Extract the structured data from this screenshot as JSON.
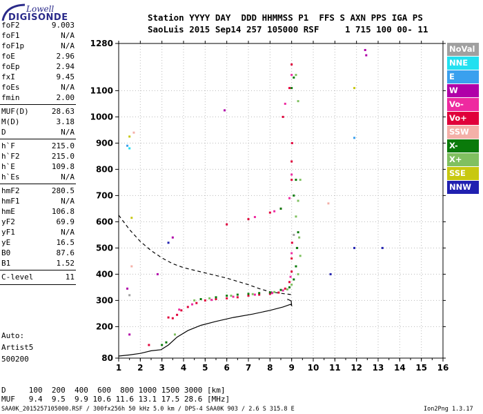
{
  "logo": {
    "top": "Lowell",
    "bottom": "DIGISONDE"
  },
  "header": {
    "line1": "Station YYYY DAY  DDD HHMMSS P1  FFS S AXN PPS IGA PS",
    "line2": "SaoLuis 2015 Sep14 257 105000 RSF     1 715 100 00- 11"
  },
  "params": [
    {
      "k": "foF2",
      "v": "9.003"
    },
    {
      "k": "foF1",
      "v": "N/A"
    },
    {
      "k": "foF1p",
      "v": "N/A"
    },
    {
      "k": "foE",
      "v": "2.96"
    },
    {
      "k": "foEp",
      "v": "2.94"
    },
    {
      "k": "fxI",
      "v": "9.45"
    },
    {
      "k": "foEs",
      "v": "N/A"
    },
    {
      "k": "fmin",
      "v": "2.00"
    },
    {
      "k": "MUF(D)",
      "v": "28.63"
    },
    {
      "k": "M(D)",
      "v": "3.18"
    },
    {
      "k": "D",
      "v": "N/A"
    },
    {
      "k": "h`F",
      "v": "215.0"
    },
    {
      "k": "h`F2",
      "v": "215.0"
    },
    {
      "k": "h`E",
      "v": "109.8"
    },
    {
      "k": "h`Es",
      "v": "N/A"
    },
    {
      "k": "hmF2",
      "v": "280.5"
    },
    {
      "k": "hmF1",
      "v": "N/A"
    },
    {
      "k": "hmE",
      "v": "106.8"
    },
    {
      "k": "yF2",
      "v": "69.9"
    },
    {
      "k": "yF1",
      "v": "N/A"
    },
    {
      "k": "yE",
      "v": "16.5"
    },
    {
      "k": "B0",
      "v": "87.6"
    },
    {
      "k": "B1",
      "v": "1.52"
    },
    {
      "k": "C-level",
      "v": "11"
    }
  ],
  "auto": {
    "line1": "Auto:",
    "line2": "Artist5",
    "line3": "500200"
  },
  "legend": [
    {
      "label": "NoVal",
      "color": "#a0a0a0"
    },
    {
      "label": "NNE",
      "color": "#22e0f0"
    },
    {
      "label": "E",
      "color": "#3aa0ee"
    },
    {
      "label": "W",
      "color": "#b000a8"
    },
    {
      "label": "Vo-",
      "color": "#ee2aa0"
    },
    {
      "label": "Vo+",
      "color": "#e0003a"
    },
    {
      "label": "SSW",
      "color": "#f4b0a8"
    },
    {
      "label": "X-",
      "color": "#0a7a0a"
    },
    {
      "label": "X+",
      "color": "#80c060"
    },
    {
      "label": "SSE",
      "color": "#c8c810"
    },
    {
      "label": "NNW",
      "color": "#2020b0"
    }
  ],
  "footer": {
    "d_row": "D     100  200  400  600  800 1000 1500 3000 [km]",
    "muf_row": "MUF   9.4  9.5  9.9 10.6 11.6 13.1 17.5 28.6 [MHz]",
    "file_info": "SAA0K_2015257105000.RSF / 300fx256h 50 kHz 5.0 km / DPS-4 SAA0K 903 / 2.6 S 315.8 E",
    "version": "Ion2Png 1.3.17"
  },
  "chart_data": {
    "type": "scatter",
    "xlim": [
      1,
      16
    ],
    "ylim": [
      80,
      1280
    ],
    "x_ticks": [
      "1",
      "2",
      "3",
      "4",
      "5",
      "6",
      "7",
      "8",
      "9",
      "10",
      "11",
      "12",
      "13",
      "14",
      "15",
      "16"
    ],
    "y_ticks": [
      "80",
      "200",
      "300",
      "400",
      "500",
      "600",
      "700",
      "800",
      "900",
      "1000",
      "1100",
      "1280"
    ],
    "grid": true,
    "series": [
      {
        "name": "Vo+",
        "color": "#e0003a",
        "points": [
          [
            3.3,
            235
          ],
          [
            3.5,
            232
          ],
          [
            3.7,
            245
          ],
          [
            3.9,
            262
          ],
          [
            4.2,
            275
          ],
          [
            4.6,
            290
          ],
          [
            5.0,
            300
          ],
          [
            5.5,
            305
          ],
          [
            6.0,
            308
          ],
          [
            6.5,
            312
          ],
          [
            7.0,
            318
          ],
          [
            7.5,
            322
          ],
          [
            8.0,
            325
          ],
          [
            8.4,
            330
          ],
          [
            8.7,
            345
          ],
          [
            8.9,
            370
          ],
          [
            9.0,
            410
          ],
          [
            9.0,
            460
          ],
          [
            9.02,
            520
          ],
          [
            8.5,
            650
          ],
          [
            8.0,
            635
          ],
          [
            7.0,
            610
          ],
          [
            6.0,
            590
          ],
          [
            9.0,
            760
          ],
          [
            9.0,
            830
          ],
          [
            9.02,
            900
          ],
          [
            8.6,
            1000
          ],
          [
            8.9,
            1110
          ],
          [
            9.0,
            1200
          ],
          [
            2.4,
            130
          ]
        ]
      },
      {
        "name": "X-",
        "color": "#0a7a0a",
        "points": [
          [
            4.8,
            305
          ],
          [
            5.5,
            312
          ],
          [
            6.0,
            318
          ],
          [
            6.5,
            322
          ],
          [
            7.0,
            325
          ],
          [
            7.5,
            328
          ],
          [
            8.0,
            330
          ],
          [
            8.5,
            340
          ],
          [
            8.9,
            350
          ],
          [
            9.1,
            380
          ],
          [
            9.2,
            430
          ],
          [
            9.25,
            500
          ],
          [
            9.3,
            560
          ],
          [
            8.5,
            650
          ],
          [
            9.1,
            700
          ],
          [
            9.2,
            760
          ],
          [
            9.0,
            1110
          ],
          [
            9.1,
            1150
          ],
          [
            3.0,
            130
          ],
          [
            3.2,
            140
          ]
        ]
      },
      {
        "name": "X+",
        "color": "#80c060",
        "points": [
          [
            4.5,
            300
          ],
          [
            5.2,
            308
          ],
          [
            6.2,
            318
          ],
          [
            7.2,
            324
          ],
          [
            8.2,
            332
          ],
          [
            8.8,
            342
          ],
          [
            9.0,
            360
          ],
          [
            9.3,
            400
          ],
          [
            9.4,
            470
          ],
          [
            9.35,
            540
          ],
          [
            9.2,
            620
          ],
          [
            9.3,
            680
          ],
          [
            9.4,
            760
          ],
          [
            9.3,
            1060
          ],
          [
            9.2,
            1160
          ],
          [
            3.6,
            170
          ]
        ]
      },
      {
        "name": "Vo-",
        "color": "#ee2aa0",
        "points": [
          [
            3.8,
            265
          ],
          [
            4.4,
            285
          ],
          [
            5.3,
            302
          ],
          [
            6.3,
            314
          ],
          [
            7.3,
            322
          ],
          [
            8.1,
            328
          ],
          [
            8.6,
            338
          ],
          [
            8.95,
            390
          ],
          [
            9.0,
            480
          ],
          [
            7.3,
            618
          ],
          [
            8.2,
            640
          ],
          [
            8.9,
            690
          ],
          [
            9.0,
            780
          ],
          [
            8.7,
            1050
          ],
          [
            9.0,
            1160
          ]
        ]
      },
      {
        "name": "W",
        "color": "#b000a8",
        "points": [
          [
            12.4,
            1255
          ],
          [
            12.45,
            1235
          ],
          [
            5.9,
            1025
          ],
          [
            1.4,
            345
          ],
          [
            3.5,
            540
          ],
          [
            2.8,
            400
          ],
          [
            1.5,
            170
          ]
        ]
      },
      {
        "name": "NNE",
        "color": "#22e0f0",
        "points": [
          [
            1.5,
            880
          ]
        ]
      },
      {
        "name": "E",
        "color": "#3aa0ee",
        "points": [
          [
            1.4,
            890
          ],
          [
            11.9,
            920
          ]
        ]
      },
      {
        "name": "SSE",
        "color": "#c8c810",
        "points": [
          [
            1.5,
            925
          ],
          [
            1.6,
            615
          ],
          [
            11.9,
            1110
          ]
        ]
      },
      {
        "name": "SSW",
        "color": "#f4b0a8",
        "points": [
          [
            10.7,
            670
          ],
          [
            1.7,
            940
          ],
          [
            1.6,
            430
          ]
        ]
      },
      {
        "name": "NNW",
        "color": "#2020b0",
        "points": [
          [
            11.9,
            500
          ],
          [
            13.2,
            500
          ],
          [
            10.8,
            400
          ],
          [
            3.3,
            520
          ]
        ]
      },
      {
        "name": "NoVal",
        "color": "#a0a0a0",
        "points": [
          [
            9.1,
            550
          ],
          [
            1.5,
            320
          ]
        ]
      }
    ],
    "curves": [
      {
        "name": "profile-solid",
        "points": [
          [
            1,
            88
          ],
          [
            1.5,
            92
          ],
          [
            2.0,
            98
          ],
          [
            2.5,
            108
          ],
          [
            2.96,
            112
          ],
          [
            3.3,
            130
          ],
          [
            3.7,
            160
          ],
          [
            4.2,
            185
          ],
          [
            4.8,
            205
          ],
          [
            5.5,
            220
          ],
          [
            6.3,
            235
          ],
          [
            7.2,
            248
          ],
          [
            8.0,
            262
          ],
          [
            8.6,
            275
          ],
          [
            8.95,
            285
          ],
          [
            9.0,
            280.5
          ],
          [
            8.98,
            298
          ],
          [
            8.8,
            305
          ]
        ]
      },
      {
        "name": "profile-dashed",
        "points": [
          [
            1,
            625
          ],
          [
            1.5,
            570
          ],
          [
            2.0,
            525
          ],
          [
            2.5,
            490
          ],
          [
            3.0,
            462
          ],
          [
            3.5,
            440
          ],
          [
            4.0,
            425
          ],
          [
            5.0,
            405
          ],
          [
            6.0,
            385
          ],
          [
            7.0,
            360
          ],
          [
            7.5,
            345
          ],
          [
            8.0,
            333
          ],
          [
            8.5,
            327
          ],
          [
            9.0,
            322
          ]
        ]
      }
    ]
  }
}
